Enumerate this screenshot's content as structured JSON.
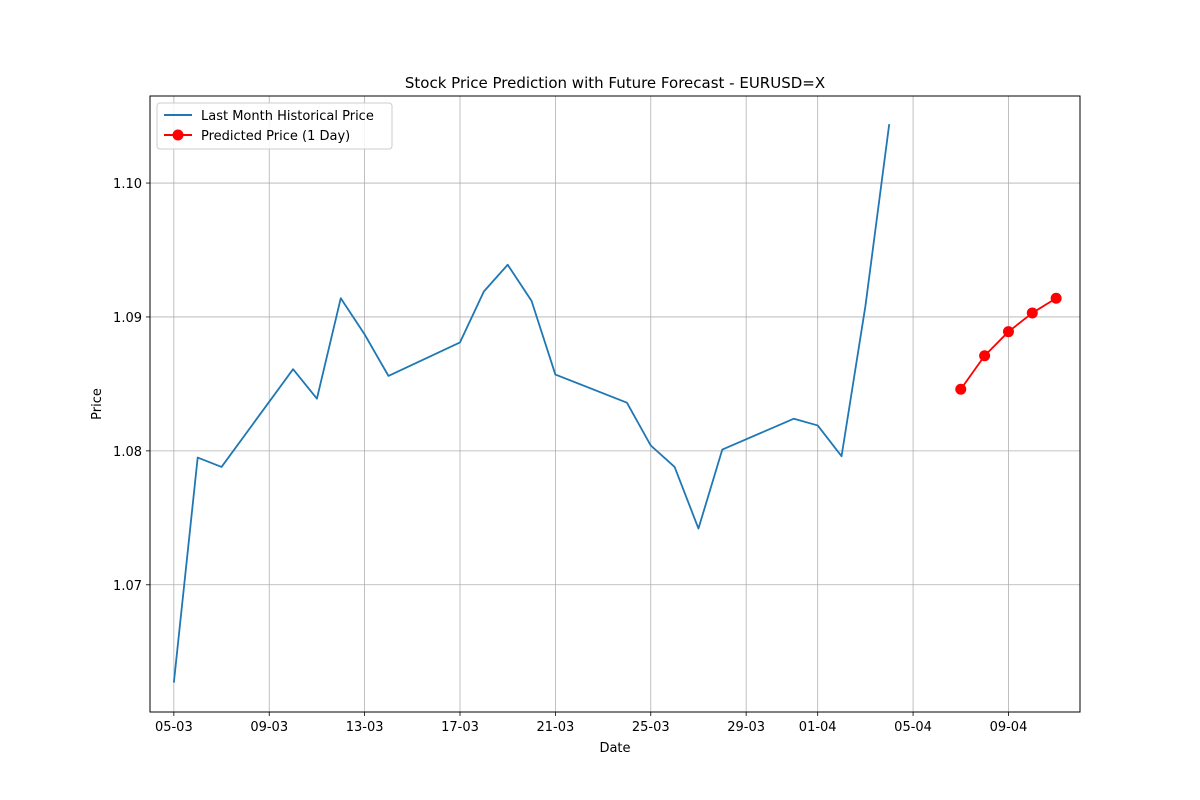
{
  "chart_data": {
    "type": "line",
    "title": "Stock Price Prediction with Future Forecast - EURUSD=X",
    "xlabel": "Date",
    "ylabel": "Price",
    "grid": true,
    "legend_position": "top-left",
    "xlim": [
      "2024-03-04",
      "2024-04-12"
    ],
    "ylim": [
      1.0605,
      1.1065
    ],
    "x_ticks": [
      {
        "date": "2024-03-05",
        "label": "05-03"
      },
      {
        "date": "2024-03-09",
        "label": "09-03"
      },
      {
        "date": "2024-03-13",
        "label": "13-03"
      },
      {
        "date": "2024-03-17",
        "label": "17-03"
      },
      {
        "date": "2024-03-21",
        "label": "21-03"
      },
      {
        "date": "2024-03-25",
        "label": "25-03"
      },
      {
        "date": "2024-03-29",
        "label": "29-03"
      },
      {
        "date": "2024-04-01",
        "label": "01-04"
      },
      {
        "date": "2024-04-05",
        "label": "05-04"
      },
      {
        "date": "2024-04-09",
        "label": "09-04"
      }
    ],
    "y_ticks": [
      {
        "value": 1.07,
        "label": "1.07"
      },
      {
        "value": 1.08,
        "label": "1.08"
      },
      {
        "value": 1.09,
        "label": "1.09"
      },
      {
        "value": 1.1,
        "label": "1.10"
      }
    ],
    "series": [
      {
        "name": "Last Month Historical Price",
        "color": "#1f77b4",
        "marker": "none",
        "points": [
          {
            "x": "2024-03-05",
            "y": 1.0627
          },
          {
            "x": "2024-03-06",
            "y": 1.0795
          },
          {
            "x": "2024-03-07",
            "y": 1.0788
          },
          {
            "x": "2024-03-10",
            "y": 1.0861
          },
          {
            "x": "2024-03-11",
            "y": 1.0839
          },
          {
            "x": "2024-03-12",
            "y": 1.0914
          },
          {
            "x": "2024-03-13",
            "y": 1.0887
          },
          {
            "x": "2024-03-14",
            "y": 1.0856
          },
          {
            "x": "2024-03-17",
            "y": 1.0881
          },
          {
            "x": "2024-03-18",
            "y": 1.0919
          },
          {
            "x": "2024-03-19",
            "y": 1.0939
          },
          {
            "x": "2024-03-20",
            "y": 1.0912
          },
          {
            "x": "2024-03-21",
            "y": 1.0857
          },
          {
            "x": "2024-03-24",
            "y": 1.0836
          },
          {
            "x": "2024-03-25",
            "y": 1.0804
          },
          {
            "x": "2024-03-26",
            "y": 1.0788
          },
          {
            "x": "2024-03-27",
            "y": 1.0742
          },
          {
            "x": "2024-03-28",
            "y": 1.0801
          },
          {
            "x": "2024-03-31",
            "y": 1.0824
          },
          {
            "x": "2024-04-01",
            "y": 1.0819
          },
          {
            "x": "2024-04-02",
            "y": 1.0796
          },
          {
            "x": "2024-04-03",
            "y": 1.0908
          },
          {
            "x": "2024-04-04",
            "y": 1.1044
          }
        ]
      },
      {
        "name": "Predicted Price (1 Day)",
        "color": "#ff0000",
        "marker": "circle",
        "points": [
          {
            "x": "2024-04-07",
            "y": 1.0846
          },
          {
            "x": "2024-04-08",
            "y": 1.0871
          },
          {
            "x": "2024-04-09",
            "y": 1.0889
          },
          {
            "x": "2024-04-10",
            "y": 1.0903
          },
          {
            "x": "2024-04-11",
            "y": 1.0914
          }
        ]
      }
    ]
  }
}
